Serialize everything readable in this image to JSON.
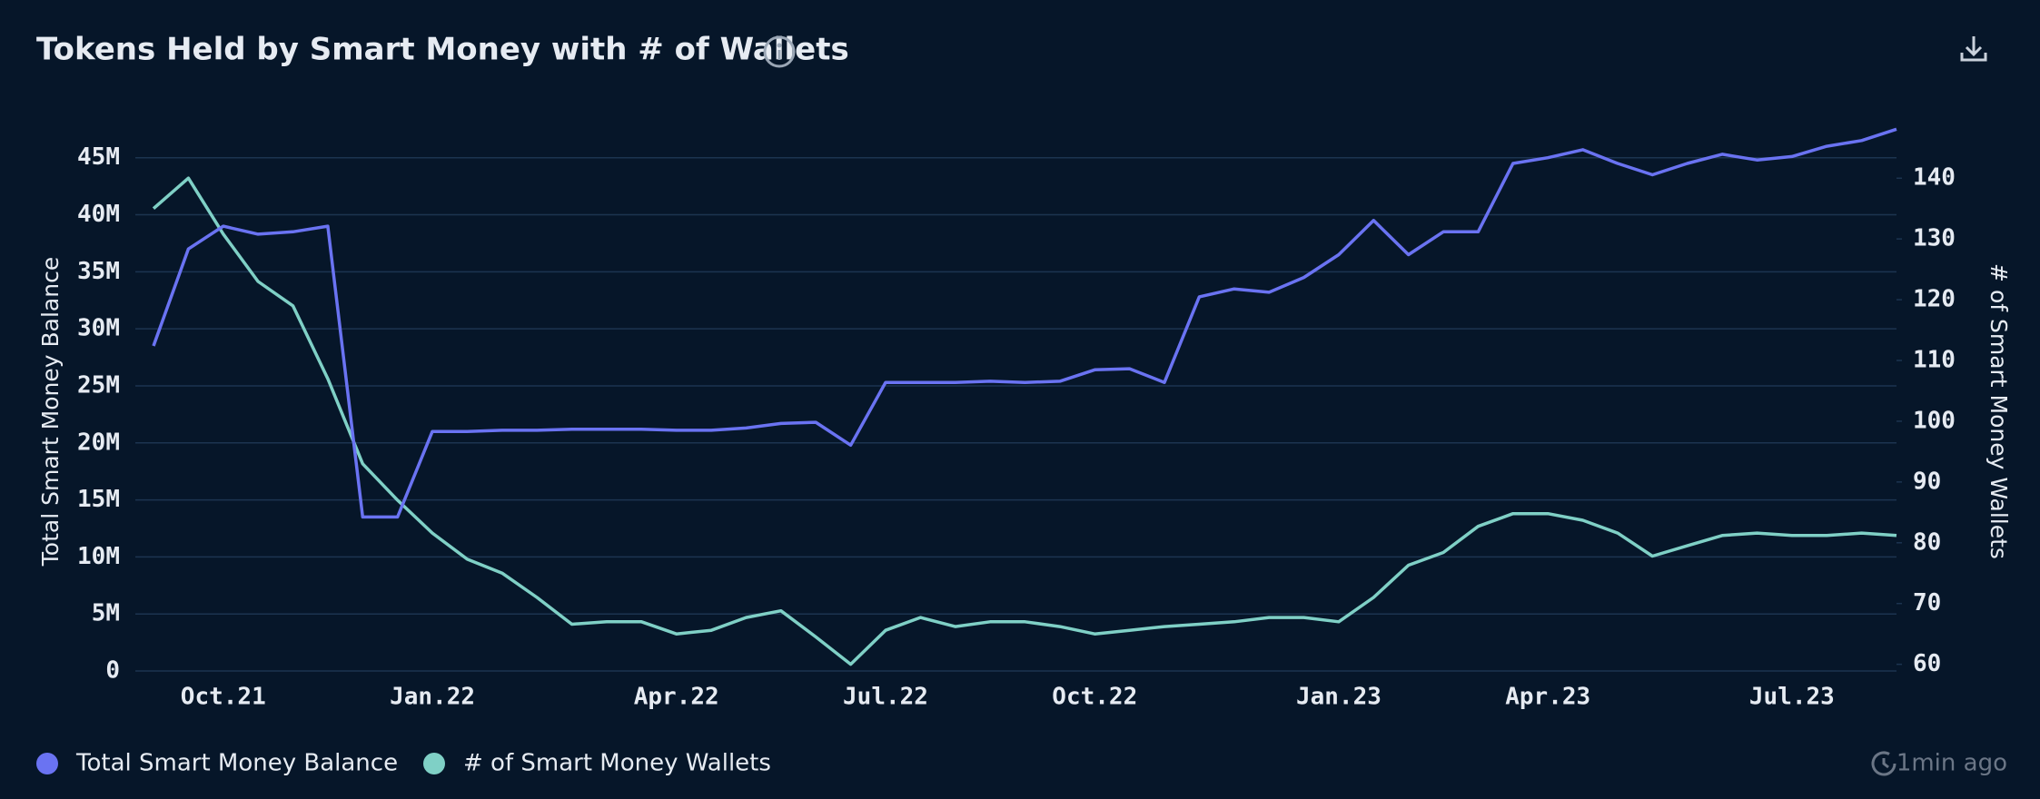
{
  "chart_data": {
    "type": "line",
    "title": "Tokens Held by Smart Money with # of Wallets",
    "ylabel": "Total Smart Money Balance",
    "y2label": "# of Smart Money Wallets",
    "updated": "1min ago",
    "categories": [
      null,
      null,
      "Oct.21",
      null,
      null,
      null,
      null,
      null,
      "Jan.22",
      null,
      null,
      null,
      null,
      null,
      null,
      "Apr.22",
      null,
      null,
      null,
      null,
      null,
      "Jul.22",
      null,
      null,
      null,
      null,
      null,
      "Oct.22",
      null,
      null,
      null,
      null,
      null,
      null,
      "Jan.23",
      null,
      null,
      null,
      null,
      null,
      "Apr.23",
      null,
      null,
      null,
      null,
      null,
      null,
      "Jul.23",
      null,
      null,
      null
    ],
    "ylim": [
      0,
      48000000
    ],
    "yticks": [
      0,
      {
        "value": 5000000,
        "label": "5M"
      },
      {
        "value": 10000000,
        "label": "10M"
      },
      {
        "value": 15000000,
        "label": "15M"
      },
      {
        "value": 20000000,
        "label": "20M"
      },
      {
        "value": 25000000,
        "label": "25M"
      },
      {
        "value": 30000000,
        "label": "30M"
      },
      {
        "value": 35000000,
        "label": "35M"
      },
      {
        "value": 40000000,
        "label": "40M"
      },
      {
        "value": 45000000,
        "label": "45M"
      }
    ],
    "y2lim": [
      58.9,
      149
    ],
    "y2ticks": [
      60,
      70,
      80,
      90,
      100,
      110,
      120,
      130,
      140
    ],
    "grid": true,
    "series": [
      {
        "name": "Total Smart Money Balance",
        "color": "#6a73f2",
        "values": [
          28500000,
          37000000,
          39000000,
          38300000,
          38500000,
          39000000,
          13500000,
          13500000,
          21000000,
          21000000,
          21100000,
          21100000,
          21200000,
          21200000,
          21200000,
          21100000,
          21100000,
          21300000,
          21700000,
          21800000,
          19800000,
          25300000,
          25300000,
          25300000,
          25400000,
          25300000,
          25400000,
          26400000,
          26500000,
          25300000,
          32800000,
          33500000,
          33200000,
          34500000,
          36500000,
          39500000,
          36500000,
          38500000,
          38500000,
          44500000,
          45000000,
          45700000,
          44500000,
          43500000,
          44500000,
          45300000,
          44800000,
          45100000,
          46000000,
          46500000,
          47500000
        ]
      },
      {
        "name": "# of Smart Money Wallets",
        "color": "#7fd0c6",
        "axis": "y2",
        "values": [
          135,
          140,
          130.8,
          123,
          119,
          107,
          93,
          87,
          81.6,
          77.3,
          75,
          71,
          66.6,
          67,
          67,
          65,
          65.6,
          67.7,
          68.8,
          64.5,
          60,
          65.6,
          67.7,
          66.2,
          67,
          67,
          66.2,
          65,
          65.6,
          66.2,
          66.6,
          67,
          67.7,
          67.7,
          67,
          71,
          76.3,
          78.4,
          82.7,
          84.8,
          84.8,
          83.7,
          81.6,
          77.8,
          79.5,
          81.2,
          81.6,
          81.2,
          81.2,
          81.6,
          81.2
        ]
      }
    ]
  }
}
